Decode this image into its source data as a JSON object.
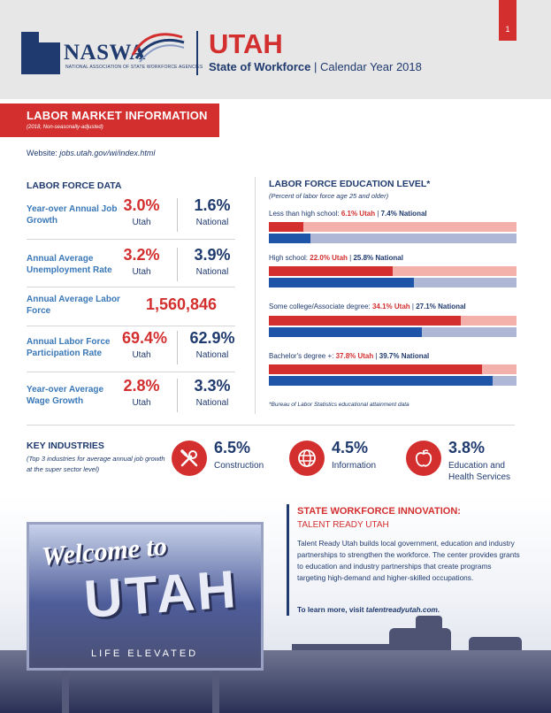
{
  "header": {
    "logo_text": "NASWA",
    "logo_subtitle": "NATIONAL ASSOCIATION OF STATE WORKFORCE AGENCIES",
    "state": "UTAH",
    "subtitle_bold": "State of Workforce",
    "subtitle_rest": " | Calendar Year 2018",
    "page_number": "1"
  },
  "lmi": {
    "title": "LABOR MARKET INFORMATION",
    "subtitle": "(2018, Non-seasonally-adjusted)",
    "website_label": "Website: ",
    "website_url": "jobs.utah.gov/wi/index.html"
  },
  "labor_force_data": {
    "title": "LABOR FORCE DATA",
    "utah_label": "Utah",
    "national_label": "National",
    "rows": [
      {
        "label": "Year-over Annual Job Growth",
        "utah": "3.0%",
        "national": "1.6%"
      },
      {
        "label": "Annual Average Unemployment Rate",
        "utah": "3.2%",
        "national": "3.9%"
      },
      {
        "label": "Annual Average Labor Force",
        "value": "1,560,846"
      },
      {
        "label": "Annual Labor Force Participation Rate",
        "utah": "69.4%",
        "national": "62.9%"
      },
      {
        "label": "Year-over Average Wage Growth",
        "utah": "2.8%",
        "national": "3.3%"
      }
    ]
  },
  "education": {
    "title": "LABOR FORCE EDUCATION LEVEL*",
    "subtitle": "(Percent of labor force age 25 and older)",
    "footnote": "*Bureau of Labor Statistics educational attainment data",
    "separator": " | ",
    "levels": [
      {
        "label": "Less than high school: ",
        "utah_text": "6.1% Utah",
        "national_text": "7.4% National",
        "utah": 6.1,
        "national": 7.4
      },
      {
        "label": "High school: ",
        "utah_text": "22.0% Utah",
        "national_text": "25.8% National",
        "utah": 22.0,
        "national": 25.8
      },
      {
        "label": "Some college/Associate degree: ",
        "utah_text": "34.1% Utah",
        "national_text": "27.1% National",
        "utah": 34.1,
        "national": 27.1
      },
      {
        "label": "Bachelor's degree +: ",
        "utah_text": "37.8% Utah",
        "national_text": "39.7% National",
        "utah": 37.8,
        "national": 39.7
      }
    ]
  },
  "key_industries": {
    "title": "KEY INDUSTRIES",
    "subtitle": "(Top 3 industries for average annual job growth at the super sector level)",
    "items": [
      {
        "pct": "6.5%",
        "name": "Construction",
        "icon": "tools-icon"
      },
      {
        "pct": "4.5%",
        "name": "Information",
        "icon": "globe-icon"
      },
      {
        "pct": "3.8%",
        "name": "Education and Health Services",
        "icon": "apple-icon"
      }
    ]
  },
  "innovation": {
    "title": "STATE WORKFORCE INNOVATION:",
    "subtitle": "TALENT READY UTAH",
    "body": "Talent Ready Utah builds local government, education and industry partnerships to strengthen the workforce. The center provides grants to education and industry partnerships that create programs targeting high-demand and higher-skilled occupations.",
    "more_label": "To learn more, visit ",
    "more_url": "talentreadyutah.com."
  },
  "photo": {
    "sign_line1": "Welcome to",
    "sign_line2": "UTAH",
    "sign_line3": "LIFE ELEVATED"
  }
}
